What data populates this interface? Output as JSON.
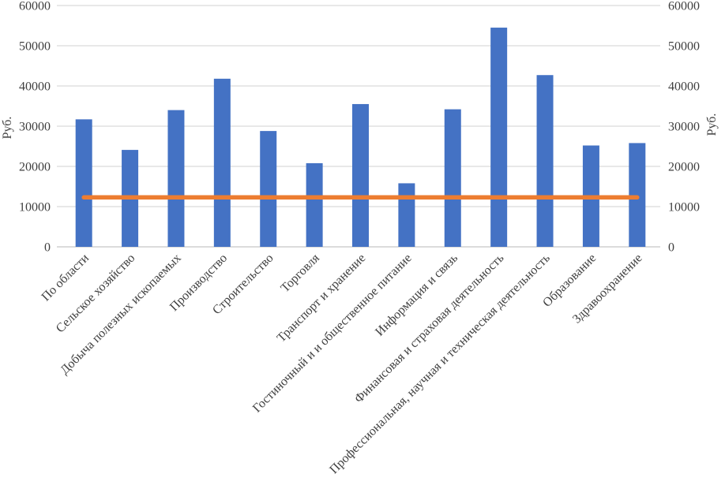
{
  "chart_data": {
    "type": "bar",
    "title": "",
    "categories": [
      "По области",
      "Сельское хозяйство",
      "Добыча полезных ископаемых",
      "Производство",
      "Строительство",
      "Торговля",
      "Транспорт и хранение",
      "Гостиночный и и общественное питание",
      "Информация и связь",
      "Финансовая и страховая деятельность",
      "Профессиональная, научная и техническая деятельность",
      "Образование",
      "Здравоохранение"
    ],
    "series": [
      {
        "name": "wage-by-sector-bars",
        "type": "bar",
        "color": "#4472C4",
        "values": [
          31700,
          24100,
          34000,
          41800,
          28800,
          20800,
          35500,
          15800,
          34200,
          54500,
          42700,
          25200,
          25800
        ]
      },
      {
        "name": "reference-line",
        "type": "line",
        "color": "#ED7D31",
        "values": [
          12300,
          12300,
          12300,
          12300,
          12300,
          12300,
          12300,
          12300,
          12300,
          12300,
          12300,
          12300,
          12300
        ]
      }
    ],
    "ylabel_left": "Руб.",
    "ylabel_right": "Руб.",
    "ylim": [
      0,
      60000
    ],
    "yticks": [
      0,
      10000,
      20000,
      30000,
      40000,
      50000,
      60000
    ],
    "grid": true,
    "legend": "none",
    "category_label_angle": -45,
    "colors": {
      "bar": "#4472C4",
      "line": "#ED7D31",
      "gridline": "#D9D9D9",
      "axis_line": "#C6C6C6",
      "axis_text": "#3F3F3F"
    }
  }
}
